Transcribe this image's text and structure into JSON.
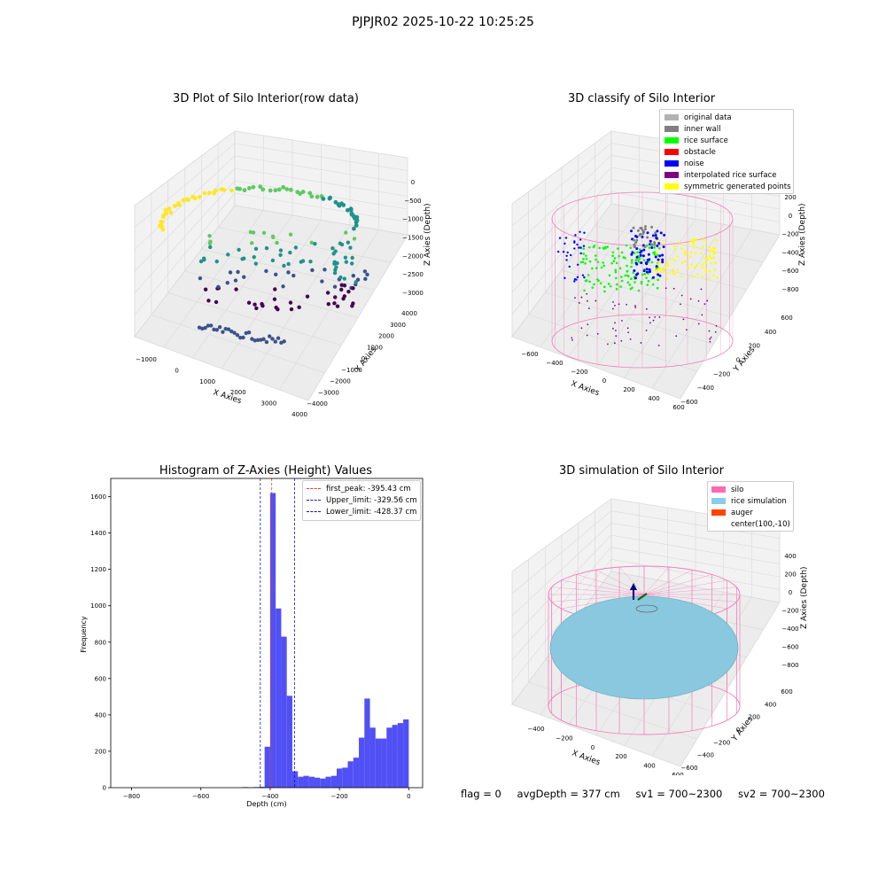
{
  "suptitle": "PJPJR02 2025-10-22 10:25:25",
  "footer": {
    "flag": "flag = 0",
    "avg_depth": "avgDepth = 377 cm",
    "sv1": "sv1 = 700~2300",
    "sv2": "sv2 = 700~2300"
  },
  "colors": {
    "grid": "#d9d9d9",
    "pane": "#f2f2f2",
    "hist_bar": "#5050f5",
    "first_peak": "#e53935",
    "limit_line": "#1a1aa0",
    "silo_wire": "#f27db9",
    "rice_surface": "#89c8de",
    "auger": "#ff4500"
  },
  "chart_data": [
    {
      "id": "raw",
      "type": "scatter",
      "title": "3D Plot of Silo Interior(row data)",
      "xlabel": "X Axies",
      "ylabel": "Y Axies",
      "zlabel": "Z Axies (Depth)",
      "xticks": [
        "−1000",
        "0",
        "1000",
        "2000",
        "3000",
        "4000"
      ],
      "yticks": [
        "−4000",
        "−3000",
        "−2000",
        "−1000",
        "0",
        "1000",
        "2000",
        "3000",
        "4000"
      ],
      "zticks": [
        "0",
        "−500",
        "−1000",
        "−1500",
        "−2000",
        "−2500",
        "−3000"
      ],
      "colormap": [
        "#fde725",
        "#5ec962",
        "#21918c",
        "#3b528b",
        "#440154"
      ]
    },
    {
      "id": "classify",
      "type": "scatter",
      "title": "3D classify of Silo Interior",
      "xlabel": "X Axies",
      "ylabel": "Y Axies",
      "zlabel": "Z Axies (Depth)",
      "xticks": [
        "−600",
        "−400",
        "−200",
        "0",
        "200",
        "400",
        "600"
      ],
      "yticks": [
        "−600",
        "−400",
        "−200",
        "0",
        "200",
        "400",
        "600"
      ],
      "zticks": [
        "200",
        "0",
        "−200",
        "−400",
        "−600",
        "−800"
      ],
      "legend": [
        {
          "label": "original data",
          "color": "#b3b3b3"
        },
        {
          "label": "inner wall",
          "color": "#808080"
        },
        {
          "label": "rice surface",
          "color": "#00ff00"
        },
        {
          "label": "obstacle",
          "color": "#ff0000"
        },
        {
          "label": "noise",
          "color": "#0000ff"
        },
        {
          "label": "interpolated rice surface",
          "color": "#800080"
        },
        {
          "label": "symmetric generated points",
          "color": "#ffff00"
        }
      ]
    },
    {
      "id": "hist",
      "type": "bar",
      "title": "Histogram of Z-Axies (Height) Values",
      "xlabel": "Depth (cm)",
      "ylabel": "Frequency",
      "xlim": [
        -860,
        40
      ],
      "ylim": [
        0,
        1700
      ],
      "xticks": [
        -800,
        -600,
        -400,
        -200,
        0
      ],
      "yticks": [
        0,
        200,
        400,
        600,
        800,
        1000,
        1200,
        1400,
        1600
      ],
      "bin_width": 16,
      "bins": [
        {
          "x": -410,
          "value": 5
        },
        {
          "x": -394,
          "value": 4
        },
        {
          "x": -378,
          "value": 3
        },
        {
          "x": -362,
          "value": 6
        },
        {
          "x": -346,
          "value": 4
        },
        {
          "x": -330,
          "value": 8
        },
        {
          "x": -314,
          "value": 3
        },
        {
          "x": -298,
          "value": 5
        }
      ],
      "fine_bins": [
        {
          "x0": -448,
          "x1": -432,
          "value": 3
        },
        {
          "x0": -432,
          "x1": -416,
          "value": 5
        },
        {
          "x0": -416,
          "x1": -400,
          "value": 225
        },
        {
          "x0": -400,
          "x1": -384,
          "value": 1620
        },
        {
          "x0": -384,
          "x1": -368,
          "value": 985
        },
        {
          "x0": -368,
          "x1": -352,
          "value": 830
        },
        {
          "x0": -352,
          "x1": -336,
          "value": 505
        },
        {
          "x0": -336,
          "x1": -320,
          "value": 90
        },
        {
          "x0": -320,
          "x1": -304,
          "value": 60
        },
        {
          "x0": -304,
          "x1": -288,
          "value": 65
        },
        {
          "x0": -288,
          "x1": -272,
          "value": 60
        },
        {
          "x0": -272,
          "x1": -256,
          "value": 55
        },
        {
          "x0": -256,
          "x1": -240,
          "value": 50
        },
        {
          "x0": -240,
          "x1": -224,
          "value": 60
        },
        {
          "x0": -224,
          "x1": -208,
          "value": 65
        },
        {
          "x0": -208,
          "x1": -192,
          "value": 105
        },
        {
          "x0": -192,
          "x1": -176,
          "value": 110
        },
        {
          "x0": -176,
          "x1": -160,
          "value": 145
        },
        {
          "x0": -160,
          "x1": -144,
          "value": 165
        },
        {
          "x0": -144,
          "x1": -128,
          "value": 275
        },
        {
          "x0": -128,
          "x1": -112,
          "value": 490
        },
        {
          "x0": -112,
          "x1": -96,
          "value": 330
        },
        {
          "x0": -96,
          "x1": -80,
          "value": 270
        },
        {
          "x0": -80,
          "x1": -64,
          "value": 270
        },
        {
          "x0": -64,
          "x1": -48,
          "value": 330
        },
        {
          "x0": -48,
          "x1": -32,
          "value": 345
        },
        {
          "x0": -32,
          "x1": -16,
          "value": 355
        },
        {
          "x0": -16,
          "x1": 0,
          "value": 375
        }
      ],
      "low_bins": [
        {
          "x0": -480,
          "x1": -464,
          "value": 3
        },
        {
          "x0": -464,
          "x1": -448,
          "value": 2
        }
      ],
      "vlines": [
        {
          "label": "first_peak: -395.43 cm",
          "x": -395.43,
          "color": "#e53935"
        },
        {
          "label": "Upper_limit: -329.56 cm",
          "x": -329.56,
          "color": "#1a1aa0"
        },
        {
          "label": "Lower_limit: -428.37 cm",
          "x": -428.37,
          "color": "#1a1aa0"
        }
      ]
    },
    {
      "id": "sim",
      "type": "scatter",
      "title": "3D simulation of Silo Interior",
      "xlabel": "X Axies",
      "ylabel": "Y Axies",
      "zlabel": "Z Axies (Depth)",
      "xticks": [
        "−400",
        "−200",
        "0",
        "200",
        "400",
        "600"
      ],
      "yticks": [
        "−600",
        "−400",
        "−200",
        "0",
        "200",
        "400",
        "600"
      ],
      "zticks": [
        "400",
        "200",
        "0",
        "−200",
        "−400",
        "−600",
        "−800"
      ],
      "legend": [
        {
          "label": "silo",
          "color": "#ff69b4"
        },
        {
          "label": "rice simulation",
          "color": "#87ceeb"
        },
        {
          "label": "auger",
          "color": "#ff4500"
        },
        {
          "label": "center(100,-10)",
          "color": ""
        }
      ]
    }
  ]
}
